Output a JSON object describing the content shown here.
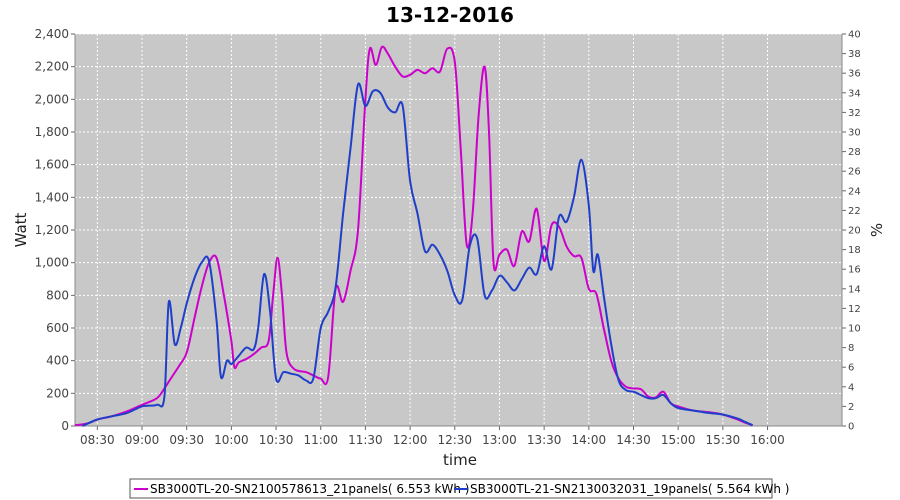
{
  "chart_data": {
    "type": "line",
    "title": "13-12-2016",
    "xlabel": "time",
    "ylabel": "Watt",
    "y2label": "%",
    "ylim": [
      0,
      2400
    ],
    "y2lim": [
      0,
      40
    ],
    "yticks": [
      "0",
      "200",
      "400",
      "600",
      "800",
      "1,000",
      "1,200",
      "1,400",
      "1,600",
      "1,800",
      "2,000",
      "2,200",
      "2,400"
    ],
    "y2ticks": [
      "0",
      "2",
      "4",
      "6",
      "8",
      "10",
      "12",
      "14",
      "16",
      "18",
      "20",
      "22",
      "24",
      "26",
      "28",
      "30",
      "32",
      "34",
      "36",
      "38",
      "40"
    ],
    "xticks": [
      "08:30",
      "09:00",
      "09:30",
      "10:00",
      "10:30",
      "11:00",
      "11:30",
      "12:00",
      "12:30",
      "13:00",
      "13:30",
      "14:00",
      "14:30",
      "15:00",
      "15:30",
      "16:00"
    ],
    "grid": true,
    "legend_position": "bottom",
    "series": [
      {
        "name": "SB3000TL-20-SN2100578613_21panels( 6.553 kWh )",
        "color": "#cc00cc",
        "points": [
          [
            "08:15",
            5
          ],
          [
            "08:20",
            10
          ],
          [
            "08:25",
            20
          ],
          [
            "08:30",
            40
          ],
          [
            "08:40",
            60
          ],
          [
            "08:50",
            90
          ],
          [
            "09:00",
            130
          ],
          [
            "09:10",
            170
          ],
          [
            "09:15",
            230
          ],
          [
            "09:20",
            300
          ],
          [
            "09:25",
            370
          ],
          [
            "09:30",
            450
          ],
          [
            "09:35",
            650
          ],
          [
            "09:40",
            850
          ],
          [
            "09:45",
            1000
          ],
          [
            "09:50",
            1030
          ],
          [
            "09:55",
            800
          ],
          [
            "10:00",
            520
          ],
          [
            "10:02",
            360
          ],
          [
            "10:05",
            390
          ],
          [
            "10:10",
            410
          ],
          [
            "10:15",
            440
          ],
          [
            "10:20",
            480
          ],
          [
            "10:25",
            520
          ],
          [
            "10:28",
            800
          ],
          [
            "10:31",
            1030
          ],
          [
            "10:34",
            800
          ],
          [
            "10:37",
            450
          ],
          [
            "10:42",
            350
          ],
          [
            "10:50",
            330
          ],
          [
            "10:55",
            310
          ],
          [
            "11:00",
            290
          ],
          [
            "11:05",
            300
          ],
          [
            "11:10",
            840
          ],
          [
            "11:15",
            760
          ],
          [
            "11:20",
            950
          ],
          [
            "11:25",
            1200
          ],
          [
            "11:30",
            2000
          ],
          [
            "11:33",
            2310
          ],
          [
            "11:37",
            2210
          ],
          [
            "11:41",
            2320
          ],
          [
            "11:45",
            2280
          ],
          [
            "11:50",
            2200
          ],
          [
            "11:55",
            2140
          ],
          [
            "12:00",
            2150
          ],
          [
            "12:05",
            2180
          ],
          [
            "12:10",
            2160
          ],
          [
            "12:15",
            2190
          ],
          [
            "12:20",
            2170
          ],
          [
            "12:25",
            2310
          ],
          [
            "12:30",
            2230
          ],
          [
            "12:34",
            1700
          ],
          [
            "12:38",
            1110
          ],
          [
            "12:42",
            1300
          ],
          [
            "12:46",
            1900
          ],
          [
            "12:50",
            2200
          ],
          [
            "12:53",
            1800
          ],
          [
            "12:56",
            1000
          ],
          [
            "13:00",
            1050
          ],
          [
            "13:05",
            1080
          ],
          [
            "13:10",
            980
          ],
          [
            "13:15",
            1190
          ],
          [
            "13:20",
            1130
          ],
          [
            "13:25",
            1330
          ],
          [
            "13:30",
            1010
          ],
          [
            "13:35",
            1230
          ],
          [
            "13:40",
            1220
          ],
          [
            "13:45",
            1100
          ],
          [
            "13:50",
            1040
          ],
          [
            "13:55",
            1030
          ],
          [
            "14:00",
            840
          ],
          [
            "14:05",
            810
          ],
          [
            "14:10",
            600
          ],
          [
            "14:15",
            400
          ],
          [
            "14:20",
            290
          ],
          [
            "14:25",
            240
          ],
          [
            "14:30",
            230
          ],
          [
            "14:35",
            225
          ],
          [
            "14:40",
            180
          ],
          [
            "14:45",
            175
          ],
          [
            "14:50",
            210
          ],
          [
            "14:55",
            140
          ],
          [
            "15:00",
            120
          ],
          [
            "15:10",
            95
          ],
          [
            "15:20",
            85
          ],
          [
            "15:30",
            70
          ],
          [
            "15:40",
            40
          ],
          [
            "15:45",
            20
          ],
          [
            "15:50",
            5
          ]
        ]
      },
      {
        "name": "SB3000TL-21-SN2130032031_19panels( 5.564 kWh )",
        "color": "#1f3fc8",
        "points": [
          [
            "08:20",
            0
          ],
          [
            "08:30",
            40
          ],
          [
            "08:40",
            60
          ],
          [
            "08:50",
            80
          ],
          [
            "09:00",
            120
          ],
          [
            "09:10",
            130
          ],
          [
            "09:15",
            180
          ],
          [
            "09:18",
            760
          ],
          [
            "09:22",
            500
          ],
          [
            "09:26",
            600
          ],
          [
            "09:30",
            750
          ],
          [
            "09:35",
            900
          ],
          [
            "09:40",
            1000
          ],
          [
            "09:45",
            1010
          ],
          [
            "09:50",
            650
          ],
          [
            "09:53",
            300
          ],
          [
            "09:57",
            400
          ],
          [
            "10:00",
            380
          ],
          [
            "10:05",
            430
          ],
          [
            "10:10",
            480
          ],
          [
            "10:15",
            470
          ],
          [
            "10:18",
            600
          ],
          [
            "10:22",
            930
          ],
          [
            "10:26",
            700
          ],
          [
            "10:30",
            290
          ],
          [
            "10:35",
            330
          ],
          [
            "10:40",
            320
          ],
          [
            "10:45",
            310
          ],
          [
            "10:50",
            280
          ],
          [
            "10:55",
            290
          ],
          [
            "11:00",
            600
          ],
          [
            "11:05",
            700
          ],
          [
            "11:10",
            850
          ],
          [
            "11:15",
            1300
          ],
          [
            "11:20",
            1700
          ],
          [
            "11:25",
            2090
          ],
          [
            "11:30",
            1960
          ],
          [
            "11:35",
            2050
          ],
          [
            "11:40",
            2040
          ],
          [
            "11:45",
            1950
          ],
          [
            "11:50",
            1920
          ],
          [
            "11:55",
            1960
          ],
          [
            "12:00",
            1500
          ],
          [
            "12:05",
            1300
          ],
          [
            "12:10",
            1070
          ],
          [
            "12:15",
            1110
          ],
          [
            "12:20",
            1050
          ],
          [
            "12:25",
            950
          ],
          [
            "12:30",
            800
          ],
          [
            "12:35",
            770
          ],
          [
            "12:40",
            1100
          ],
          [
            "12:45",
            1150
          ],
          [
            "12:50",
            800
          ],
          [
            "12:55",
            830
          ],
          [
            "13:00",
            920
          ],
          [
            "13:05",
            880
          ],
          [
            "13:10",
            830
          ],
          [
            "13:15",
            900
          ],
          [
            "13:20",
            970
          ],
          [
            "13:25",
            930
          ],
          [
            "13:30",
            1100
          ],
          [
            "13:35",
            960
          ],
          [
            "13:40",
            1280
          ],
          [
            "13:45",
            1250
          ],
          [
            "13:50",
            1400
          ],
          [
            "13:55",
            1630
          ],
          [
            "14:00",
            1350
          ],
          [
            "14:03",
            950
          ],
          [
            "14:06",
            1050
          ],
          [
            "14:10",
            800
          ],
          [
            "14:15",
            500
          ],
          [
            "14:20",
            280
          ],
          [
            "14:25",
            220
          ],
          [
            "14:30",
            210
          ],
          [
            "14:35",
            190
          ],
          [
            "14:40",
            170
          ],
          [
            "14:45",
            170
          ],
          [
            "14:50",
            190
          ],
          [
            "14:55",
            140
          ],
          [
            "15:00",
            110
          ],
          [
            "15:10",
            95
          ],
          [
            "15:20",
            80
          ],
          [
            "15:30",
            70
          ],
          [
            "15:40",
            45
          ],
          [
            "15:45",
            25
          ],
          [
            "15:50",
            5
          ]
        ]
      }
    ]
  }
}
